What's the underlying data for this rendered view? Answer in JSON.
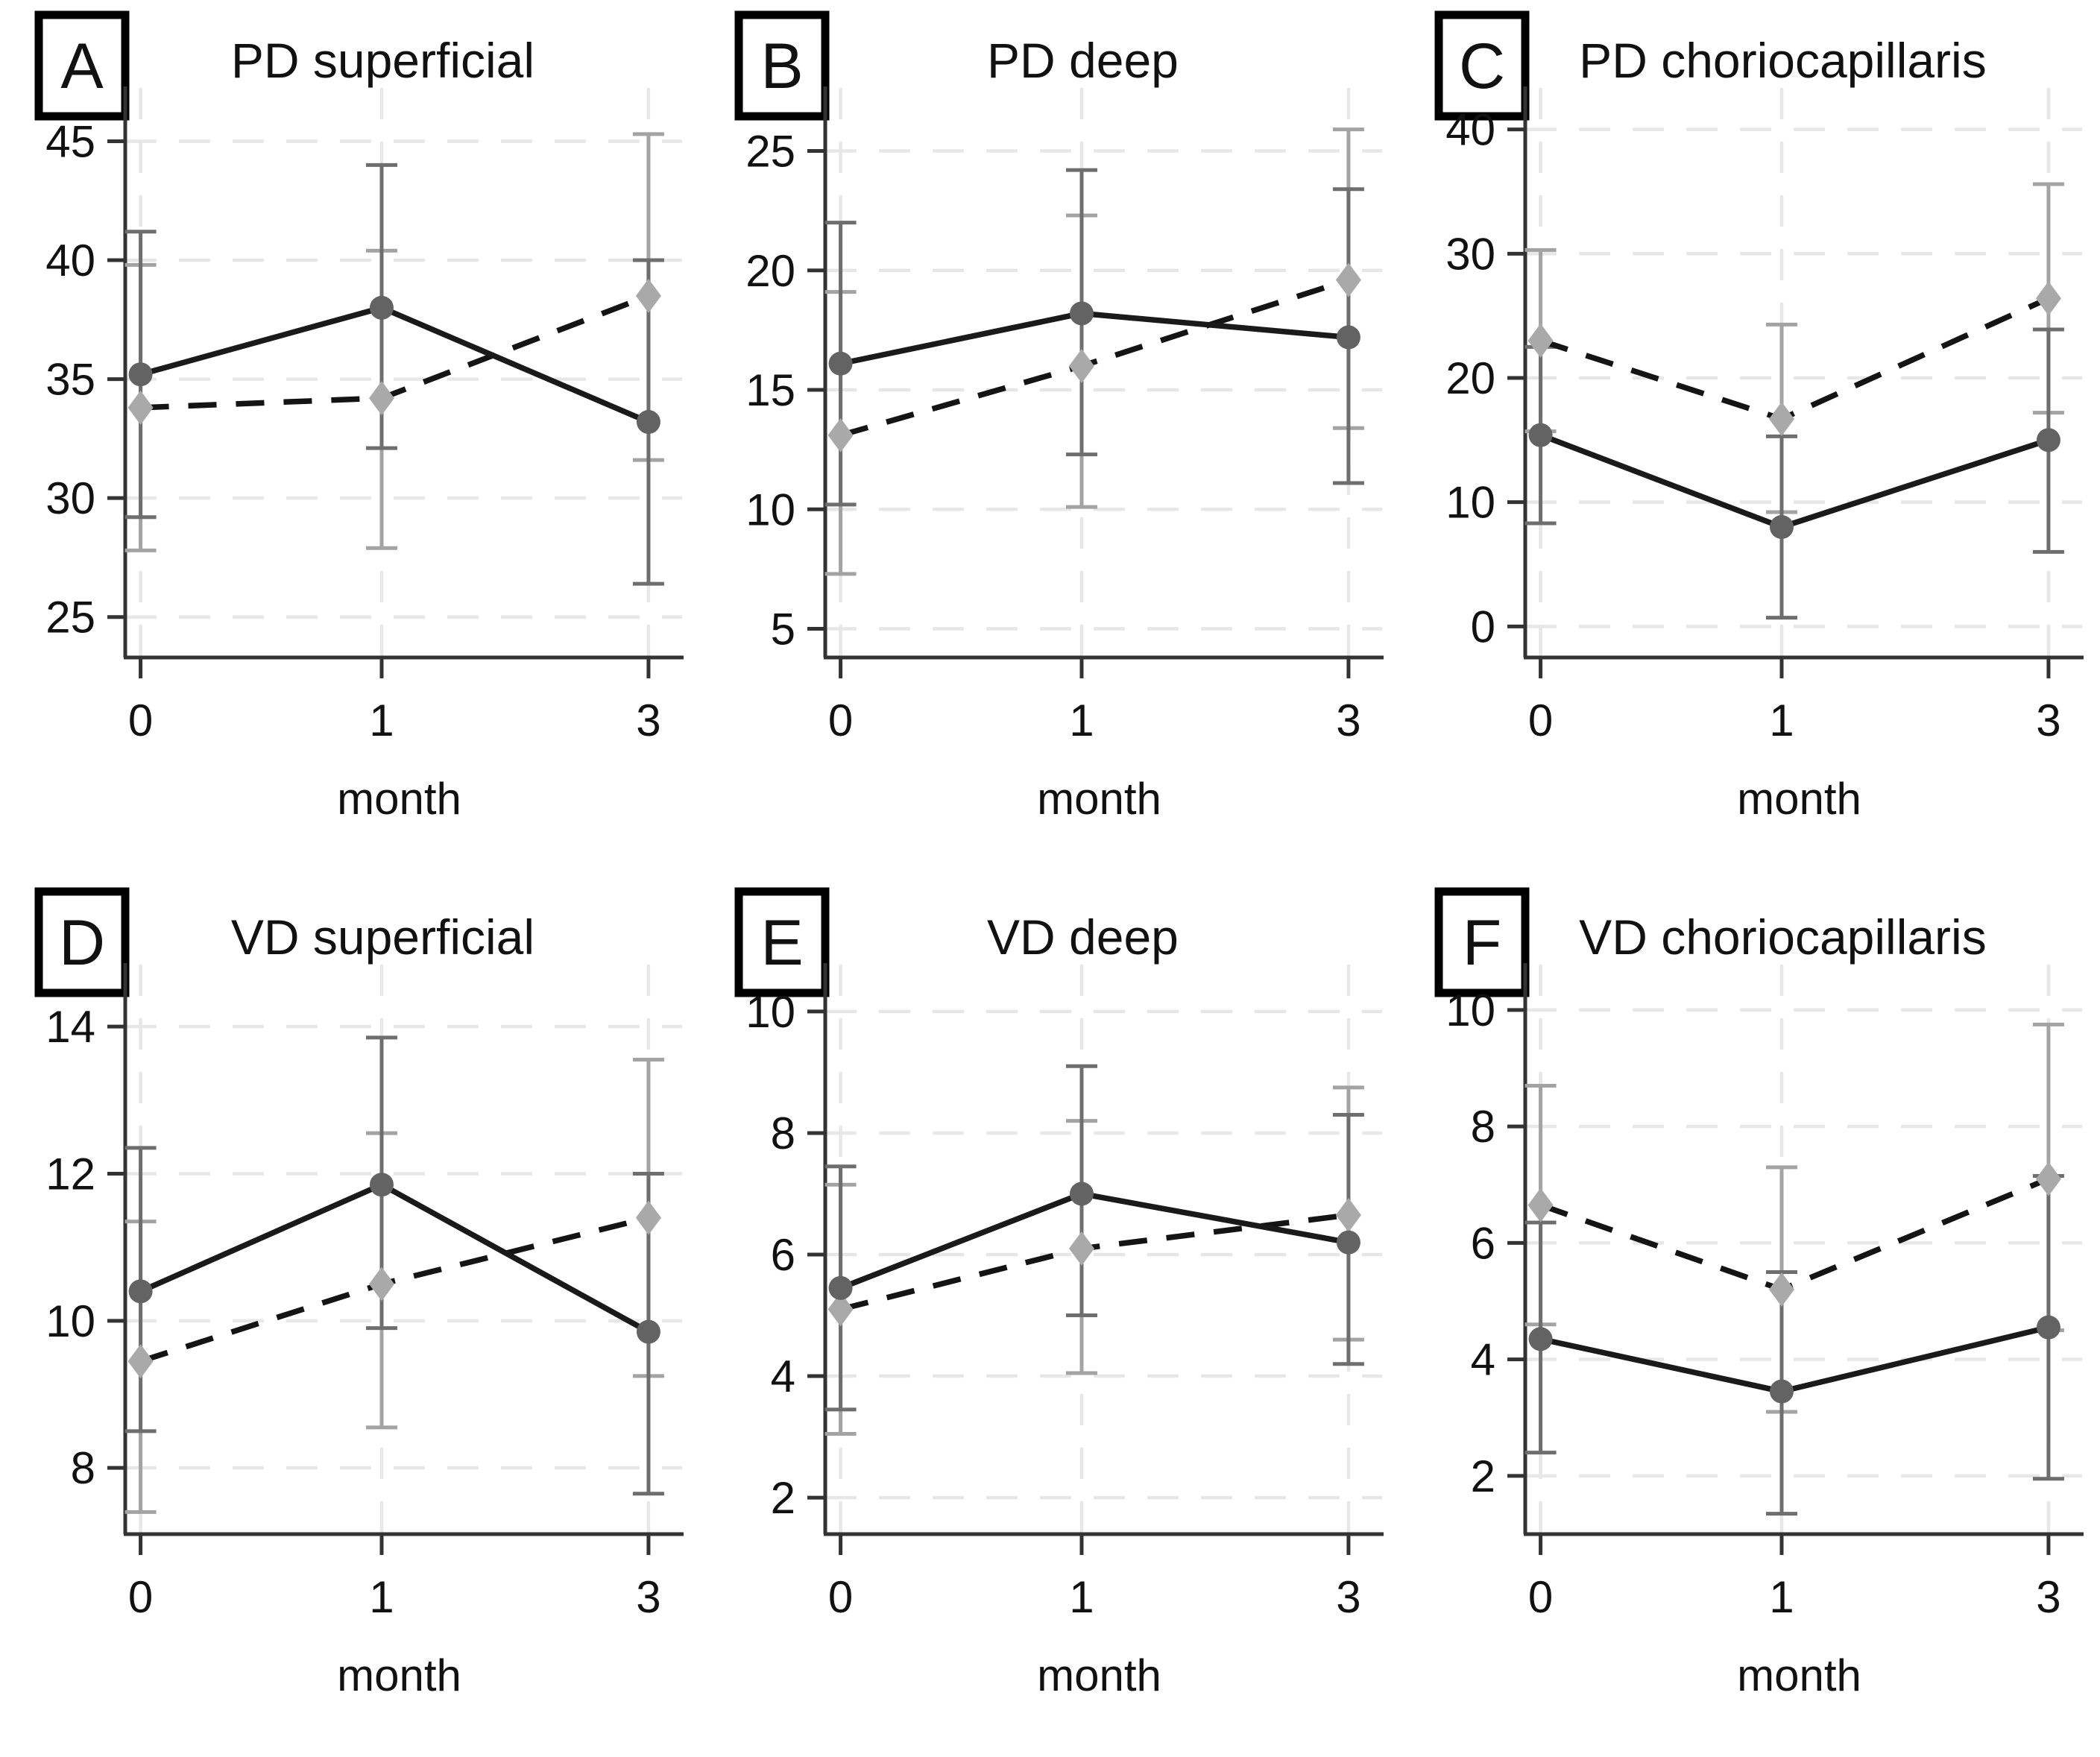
{
  "figure": {
    "xlabel": "month",
    "x_categories": [
      "0",
      "1",
      "3"
    ],
    "colors": {
      "solid_line": "#1a1a1a",
      "dashed_line": "#141414",
      "dark_marker": "#636363",
      "light_marker": "#a9a9a9",
      "dark_errorbar": "#6e6e6e",
      "light_errorbar": "#a3a3a3",
      "grid": "#e7e7e7",
      "axis": "#333333",
      "text": "#111111",
      "panel_box_border": "#000000"
    }
  },
  "chart_data": [
    {
      "panel": "A",
      "title": "PD superficial",
      "type": "line",
      "x": [
        "0",
        "1",
        "3"
      ],
      "xlabel": "month",
      "yticks": [
        25,
        30,
        35,
        40,
        45
      ],
      "ylim": [
        23.3,
        46.8
      ],
      "grid": true,
      "legend": "none",
      "series": [
        {
          "name": "dashed-diamond-series",
          "line": "dashed",
          "marker": "diamond",
          "values": [
            33.8,
            34.2,
            38.5
          ],
          "err_low": [
            27.8,
            27.9,
            31.6
          ],
          "err_high": [
            39.8,
            40.4,
            45.3
          ]
        },
        {
          "name": "solid-circle-series",
          "line": "solid",
          "marker": "circle",
          "values": [
            35.2,
            38.0,
            33.2
          ],
          "err_low": [
            29.2,
            32.1,
            26.4
          ],
          "err_high": [
            41.2,
            44.0,
            40.0
          ]
        }
      ]
    },
    {
      "panel": "B",
      "title": "PD deep",
      "type": "line",
      "x": [
        "0",
        "1",
        "3"
      ],
      "xlabel": "month",
      "yticks": [
        5,
        10,
        15,
        20,
        25
      ],
      "ylim": [
        3.8,
        27.2
      ],
      "grid": true,
      "legend": "none",
      "series": [
        {
          "name": "dashed-diamond-series",
          "line": "dashed",
          "marker": "diamond",
          "values": [
            13.1,
            16.0,
            19.6
          ],
          "err_low": [
            7.3,
            10.1,
            13.4
          ],
          "err_high": [
            19.1,
            22.3,
            25.9
          ]
        },
        {
          "name": "solid-circle-series",
          "line": "solid",
          "marker": "circle",
          "values": [
            16.1,
            18.2,
            17.2
          ],
          "err_low": [
            10.2,
            12.3,
            11.1
          ],
          "err_high": [
            22.0,
            24.2,
            23.4
          ]
        }
      ]
    },
    {
      "panel": "C",
      "title": "PD choriocapillaris",
      "type": "line",
      "x": [
        "0",
        "1",
        "3"
      ],
      "xlabel": "month",
      "yticks": [
        0,
        10,
        20,
        30,
        40
      ],
      "ylim": [
        -2.5,
        42.5
      ],
      "grid": true,
      "legend": "none",
      "series": [
        {
          "name": "dashed-diamond-series",
          "line": "dashed",
          "marker": "diamond",
          "values": [
            23.0,
            16.7,
            26.4
          ],
          "err_low": [
            15.7,
            9.2,
            17.2
          ],
          "err_high": [
            30.3,
            24.3,
            35.6
          ]
        },
        {
          "name": "solid-circle-series",
          "line": "solid",
          "marker": "circle",
          "values": [
            15.4,
            8.0,
            15.0
          ],
          "err_low": [
            8.3,
            0.7,
            6.0
          ],
          "err_high": [
            22.5,
            15.3,
            23.9
          ]
        }
      ]
    },
    {
      "panel": "D",
      "title": "VD superficial",
      "type": "line",
      "x": [
        "0",
        "1",
        "3"
      ],
      "xlabel": "month",
      "yticks": [
        8,
        10,
        12,
        14
      ],
      "ylim": [
        7.1,
        14.7
      ],
      "grid": true,
      "legend": "none",
      "series": [
        {
          "name": "dashed-diamond-series",
          "line": "dashed",
          "marker": "diamond",
          "values": [
            9.45,
            10.5,
            11.4
          ],
          "err_low": [
            7.4,
            8.55,
            9.25
          ],
          "err_high": [
            11.35,
            12.55,
            13.55
          ]
        },
        {
          "name": "solid-circle-series",
          "line": "solid",
          "marker": "circle",
          "values": [
            10.4,
            11.85,
            9.85
          ],
          "err_low": [
            8.5,
            9.9,
            7.65
          ],
          "err_high": [
            12.35,
            13.85,
            12.0
          ]
        }
      ]
    },
    {
      "panel": "E",
      "title": "VD deep",
      "type": "line",
      "x": [
        "0",
        "1",
        "3"
      ],
      "xlabel": "month",
      "yticks": [
        2,
        4,
        6,
        8,
        10
      ],
      "ylim": [
        1.4,
        10.6
      ],
      "grid": true,
      "legend": "none",
      "series": [
        {
          "name": "dashed-diamond-series",
          "line": "dashed",
          "marker": "diamond",
          "values": [
            5.1,
            6.1,
            6.65
          ],
          "err_low": [
            3.05,
            4.05,
            4.6
          ],
          "err_high": [
            7.15,
            8.2,
            8.75
          ]
        },
        {
          "name": "solid-circle-series",
          "line": "solid",
          "marker": "circle",
          "values": [
            5.45,
            7.0,
            6.2
          ],
          "err_low": [
            3.45,
            5.0,
            4.2
          ],
          "err_high": [
            7.45,
            9.1,
            8.3
          ]
        }
      ]
    },
    {
      "panel": "F",
      "title": "VD choriocapillaris",
      "type": "line",
      "x": [
        "0",
        "1",
        "3"
      ],
      "xlabel": "month",
      "yticks": [
        2,
        4,
        6,
        8,
        10
      ],
      "ylim": [
        1.0,
        10.6
      ],
      "grid": true,
      "legend": "none",
      "series": [
        {
          "name": "dashed-diamond-series",
          "line": "dashed",
          "marker": "diamond",
          "values": [
            6.65,
            5.2,
            7.1
          ],
          "err_low": [
            4.6,
            3.1,
            4.5
          ],
          "err_high": [
            8.7,
            7.3,
            9.75
          ]
        },
        {
          "name": "solid-circle-series",
          "line": "solid",
          "marker": "circle",
          "values": [
            4.35,
            3.45,
            4.55
          ],
          "err_low": [
            2.4,
            1.35,
            1.95
          ],
          "err_high": [
            6.35,
            5.5,
            7.15
          ]
        }
      ]
    }
  ]
}
